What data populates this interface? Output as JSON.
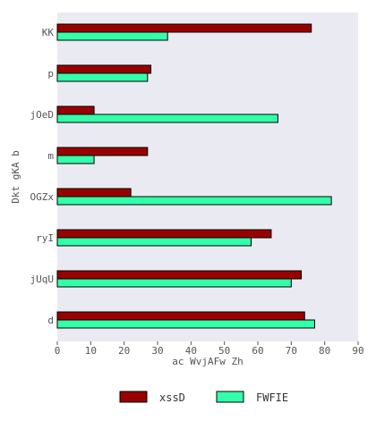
{
  "chart_data": {
    "type": "bar",
    "orientation": "horizontal",
    "categories": [
      "KK",
      "p",
      "jOeD",
      "m",
      "OGZx",
      "ryI",
      "jUqU",
      "d"
    ],
    "series": [
      {
        "name": "xssD",
        "color": "#990000",
        "values": [
          76,
          28,
          11,
          27,
          22,
          64,
          73,
          74
        ]
      },
      {
        "name": "FWFIE",
        "color": "#33ffaa",
        "values": [
          33,
          27,
          66,
          11,
          82,
          58,
          70,
          77
        ]
      }
    ],
    "xlabel": "ac WvjAFw Zh",
    "ylabel": "Dkt gKA b",
    "xlim": [
      0,
      90
    ],
    "xticks": [
      0,
      10,
      20,
      30,
      40,
      50,
      60,
      70,
      80,
      90
    ],
    "grid": false,
    "legend_position": "bottom",
    "background": "#eaeaf2"
  }
}
